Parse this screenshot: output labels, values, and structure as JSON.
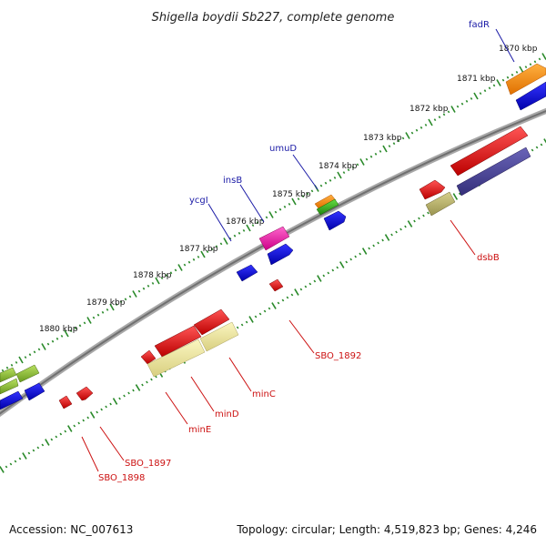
{
  "title": "Shigella boydii Sb227, complete genome",
  "footer": {
    "accession": "Accession: NC_007613",
    "topology": "Topology: circular; Length: 4,519,823 bp; Genes: 4,246"
  },
  "scale_labels": [
    "1870 kbp",
    "1871 kbp",
    "1872 kbp",
    "1873 kbp",
    "1874 kbp",
    "1875 kbp",
    "1876 kbp",
    "1877 kbp",
    "1878 kbp",
    "1879 kbp",
    "1880 kbp"
  ],
  "forward_labels": [
    "fadR",
    "umuD",
    "insB",
    "ycgI"
  ],
  "reverse_labels": [
    "dsbB",
    "SBO_1892",
    "minC",
    "minD",
    "minE",
    "SBO_1897",
    "SBO_1898"
  ],
  "colors": {
    "forward_label": "#1a1aa6",
    "reverse_label": "#cc1111",
    "backbone": "#808080",
    "tick": "#2a8a2a"
  }
}
